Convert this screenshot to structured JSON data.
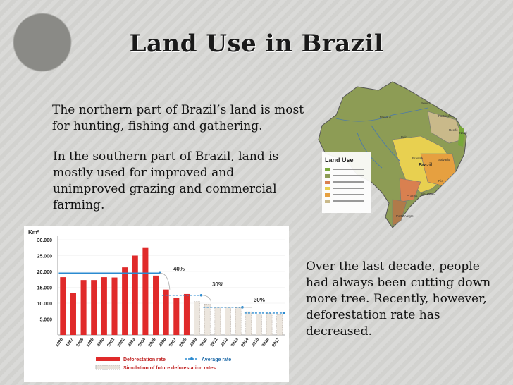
{
  "slide": {
    "title": "Land Use in Brazil",
    "paragraph_north": "The northern part of Brazil’s land is most for hunting, fishing and gathering.",
    "paragraph_south": "In the southern part of Brazil, land is mostly used for improved and unimproved grazing and commercial farming.",
    "paragraph_deforestation": "Over the last decade, people had always been cutting down more tree. Recently, however, deforestation rate has decreased."
  },
  "map": {
    "legend_title": "Land Use",
    "labels": [
      "Brazil",
      "Belo",
      "Manaus",
      "Recife",
      "Salvador",
      "Brasília",
      "Rio",
      "São Paulo",
      "Curitiba",
      "Porto Alegre",
      "Fortaleza",
      "Belém",
      "Natal"
    ],
    "colors": {
      "green": "#78a83a",
      "olive": "#8d9c55",
      "yellow": "#e8d050",
      "orange": "#e6a040",
      "hatched": "#d98050",
      "tan": "#c9b98a"
    }
  },
  "chart_data": {
    "type": "bar",
    "ylabel": "Km²",
    "ylim": [
      0,
      30000
    ],
    "yticks": [
      5000,
      10000,
      15000,
      20000,
      25000,
      30000
    ],
    "ytick_labels": [
      "5.000",
      "10.000",
      "15.000",
      "20.000",
      "25.000",
      "30.000"
    ],
    "categories": [
      "1996",
      "1997",
      "1998",
      "1999",
      "2000",
      "2001",
      "2002",
      "2003",
      "2004",
      "2005",
      "2006",
      "2007",
      "2008",
      "2009",
      "2010",
      "2011",
      "2012",
      "2013",
      "2014",
      "2015",
      "2016",
      "2017"
    ],
    "series": [
      {
        "name": "Deforestation rate",
        "values": [
          18200,
          13200,
          17300,
          17300,
          18200,
          18100,
          21300,
          25000,
          27400,
          18700,
          14300,
          11600,
          12900,
          null,
          null,
          null,
          null,
          null,
          null,
          null,
          null,
          null
        ],
        "color": "#e02a2a"
      },
      {
        "name": "Simulation of future deforestation rates",
        "values": [
          null,
          null,
          null,
          null,
          null,
          null,
          null,
          null,
          null,
          null,
          null,
          null,
          null,
          10500,
          9700,
          8800,
          8800,
          8500,
          7300,
          6600,
          6700,
          6300
        ],
        "color": "#d8d0c8"
      }
    ],
    "average_rate": {
      "name": "Average rate",
      "segments": [
        {
          "from": "1996",
          "to": "2005",
          "value": 19500
        },
        {
          "from": "2006",
          "to": "2009",
          "value": 12500
        },
        {
          "from": "2010",
          "to": "2013",
          "value": 8700
        },
        {
          "from": "2014",
          "to": "2017",
          "value": 6900
        }
      ],
      "color": "#2a8ad0"
    },
    "annotations": [
      "40%",
      "30%",
      "30%"
    ]
  }
}
